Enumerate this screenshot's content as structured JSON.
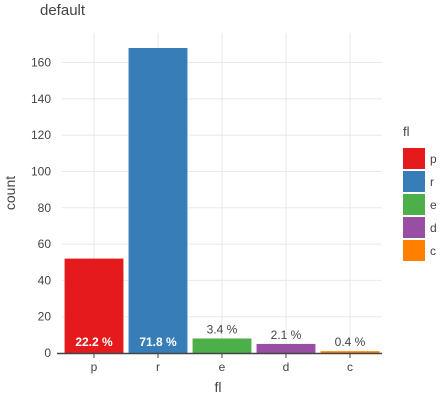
{
  "chart_data": {
    "type": "bar",
    "title": "default",
    "xlabel": "fl",
    "ylabel": "count",
    "categories": [
      "p",
      "r",
      "e",
      "d",
      "c"
    ],
    "values": [
      52,
      168,
      8,
      5,
      1
    ],
    "labels": [
      "22.2 %",
      "71.8 %",
      "3.4 %",
      "2.1 %",
      "0.4 %"
    ],
    "colors": [
      "#e41a1c",
      "#377eb8",
      "#4daf4a",
      "#984ea3",
      "#ff7f00"
    ],
    "ylim": [
      0,
      175
    ],
    "yticks": [
      0,
      20,
      40,
      60,
      80,
      100,
      120,
      140,
      160
    ],
    "grid": true,
    "legend": {
      "title": "fl",
      "position": "right",
      "entries": [
        "p",
        "r",
        "e",
        "d",
        "c"
      ]
    }
  }
}
